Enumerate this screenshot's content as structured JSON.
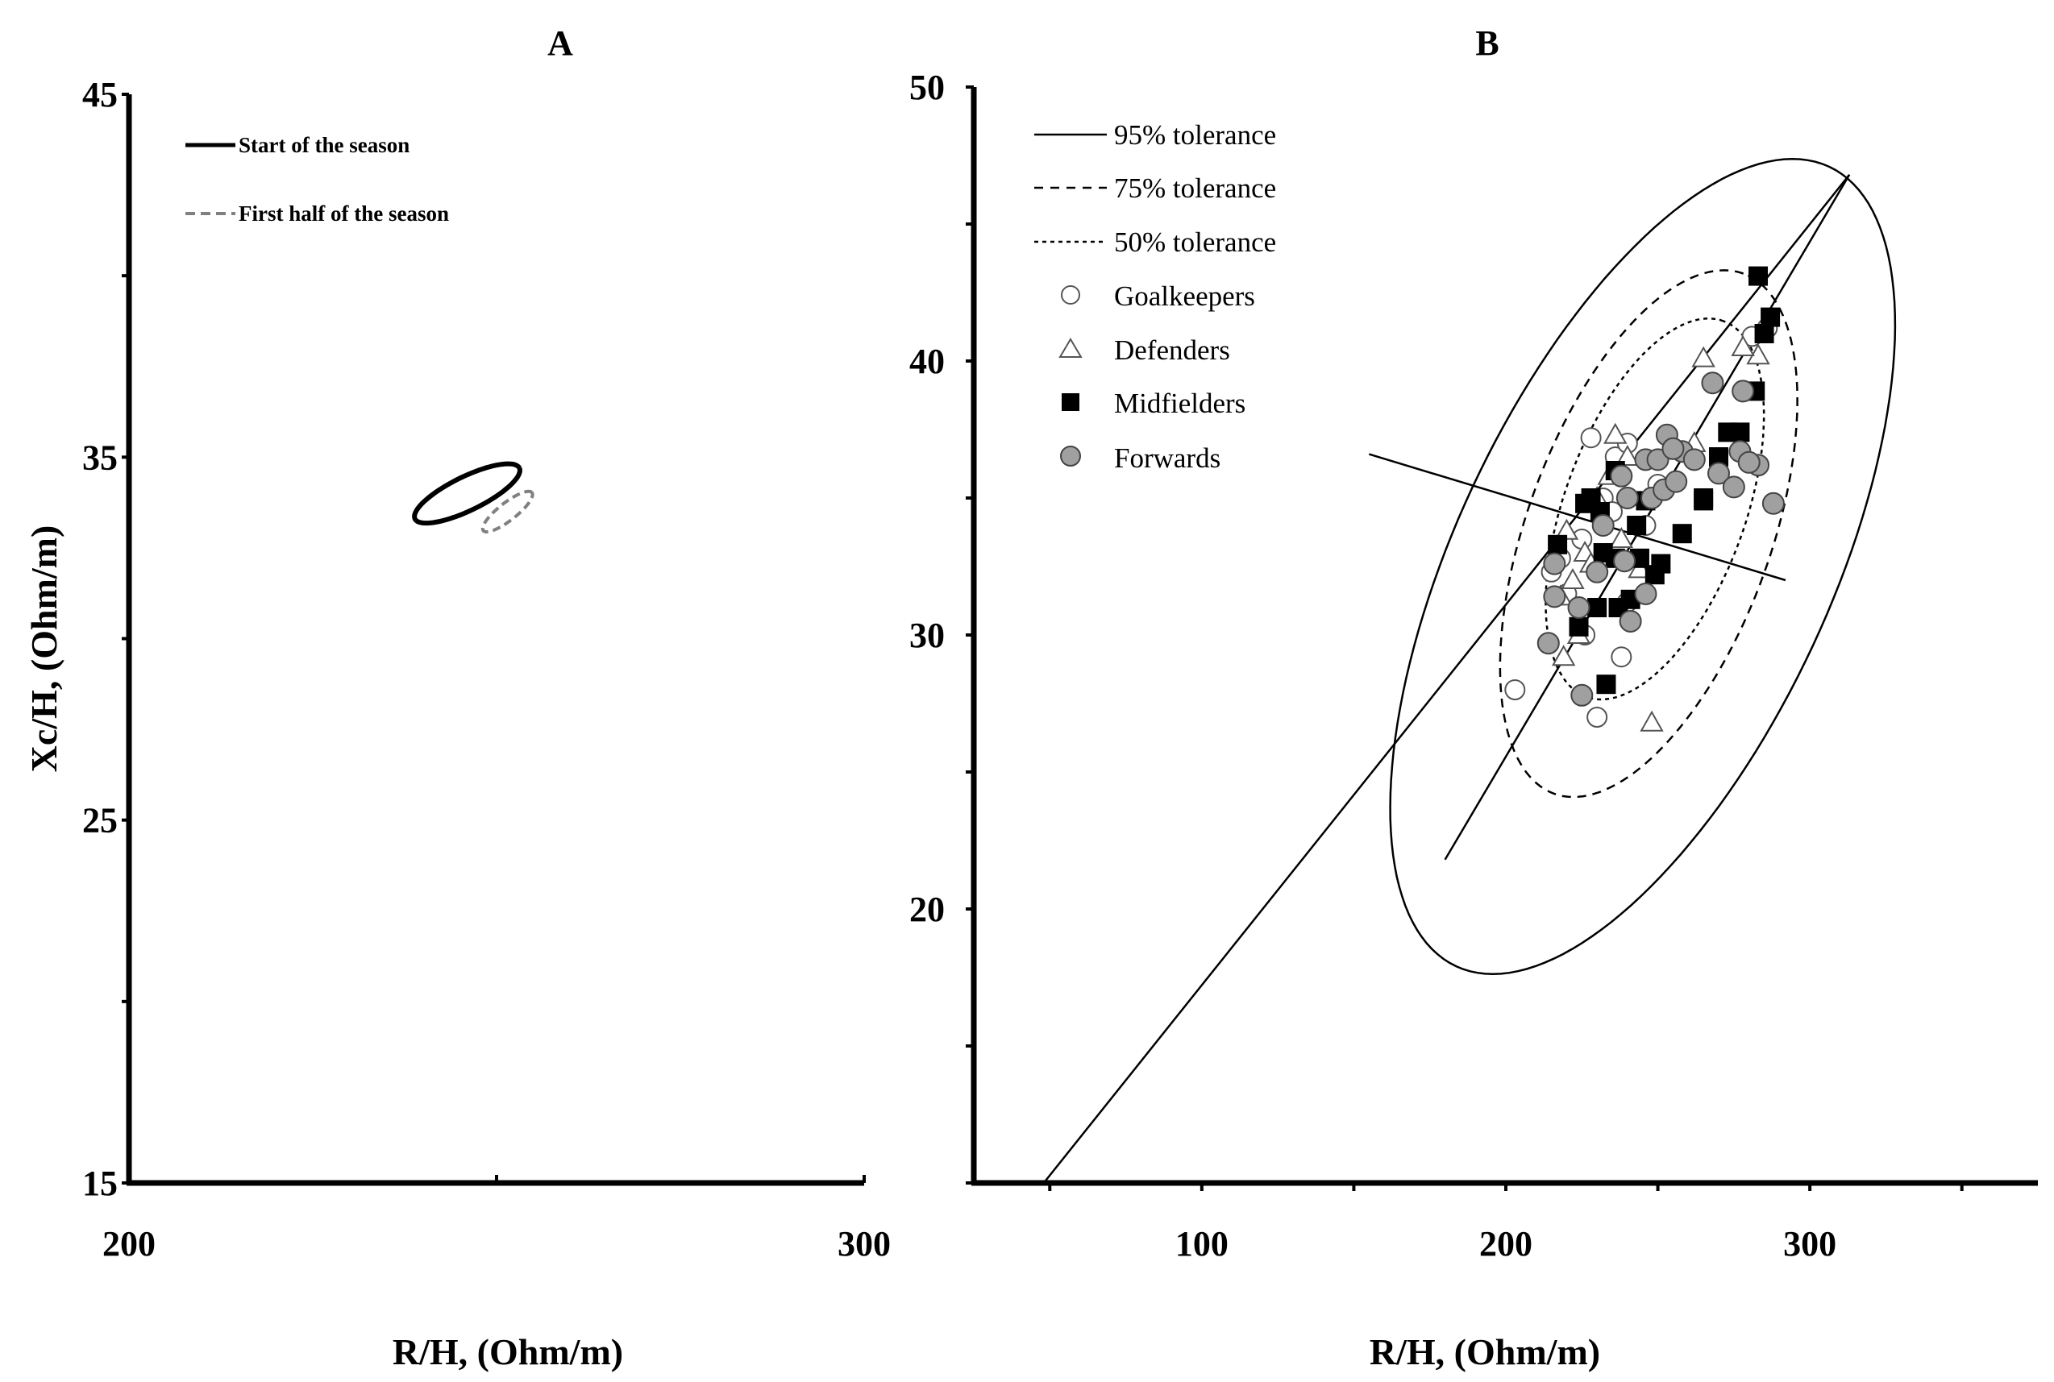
{
  "chart_data": [
    {
      "panel": "A",
      "type": "scatter",
      "title": "A",
      "xlabel": "R/H, (Ohm/m)",
      "ylabel": "Xc/H, (Ohm/m)",
      "xlim": [
        200,
        300
      ],
      "ylim": [
        15,
        45
      ],
      "xticks": [
        200,
        300
      ],
      "yticks": [
        15,
        25,
        35,
        45
      ],
      "legend_position": "top-left",
      "series": [
        {
          "name": "Start of the season",
          "style": "solid",
          "color": "#000000",
          "ellipse": {
            "center": [
              246,
              34
            ],
            "semi_major": 7.9,
            "semi_minor": 2.3,
            "angle_deg": 26
          }
        },
        {
          "name": "First half of the season",
          "style": "dashed",
          "color": "#808080",
          "ellipse": {
            "center": [
              251.5,
              33.5
            ],
            "semi_major": 4.2,
            "semi_minor": 1.2,
            "angle_deg": 38
          }
        }
      ]
    },
    {
      "panel": "B",
      "type": "scatter",
      "title": "B",
      "xlabel": "R/H, (Ohm/m)",
      "ylabel": "",
      "xlim": [
        25,
        375
      ],
      "ylim": [
        10,
        50
      ],
      "xticks": [
        100,
        200,
        300
      ],
      "yticks": [
        20,
        30,
        40,
        50
      ],
      "legend_position": "top-left",
      "tolerance_ellipses": [
        {
          "name": "95% tolerance",
          "style": "solid",
          "center": [
            245,
            32.5
          ],
          "semi_major": 16.1,
          "semi_minor": 6.85,
          "angle_deg": 65
        },
        {
          "name": "75% tolerance",
          "style": "dashed",
          "center": [
            247,
            33.7
          ],
          "semi_major": 10.1,
          "semi_minor": 4.45,
          "angle_deg": 70
        },
        {
          "name": "50% tolerance",
          "style": "dotted",
          "center": [
            249,
            34.6
          ],
          "semi_major": 7.3,
          "semi_minor": 3.3,
          "angle_deg": 70
        }
      ],
      "axes_lines": [
        {
          "name": "major-axis",
          "from": [
            48,
            10
          ],
          "to": [
            313,
            46.8
          ]
        },
        {
          "name": "major-axis-segment",
          "from": [
            180,
            21.8
          ],
          "to": [
            313,
            46.8
          ]
        },
        {
          "name": "minor-axis",
          "from": [
            155,
            36.6
          ],
          "to": [
            292,
            32
          ]
        }
      ],
      "series": [
        {
          "name": "Goalkeepers",
          "marker": "circle-open",
          "points": [
            [
              203,
              28
            ],
            [
              230,
              27
            ],
            [
              238,
              29.2
            ],
            [
              226,
              30
            ],
            [
              215,
              32.3
            ],
            [
              218,
              32.8
            ],
            [
              225,
              33.5
            ],
            [
              232,
              35
            ],
            [
              236,
              36.5
            ],
            [
              240,
              37
            ],
            [
              228,
              37.2
            ],
            [
              246,
              34
            ],
            [
              250,
              35.5
            ],
            [
              281,
              40.9
            ],
            [
              286,
              41.2
            ],
            [
              220,
              31.5
            ],
            [
              240,
              31.2
            ],
            [
              235,
              34.5
            ]
          ]
        },
        {
          "name": "Defenders",
          "marker": "triangle-open",
          "points": [
            [
              248,
              26.8
            ],
            [
              219,
              29.2
            ],
            [
              224,
              30
            ],
            [
              218,
              31.4
            ],
            [
              222,
              32
            ],
            [
              226,
              33
            ],
            [
              220,
              33.8
            ],
            [
              230,
              35
            ],
            [
              234,
              35.8
            ],
            [
              240,
              36.5
            ],
            [
              236,
              37.3
            ],
            [
              265,
              40.1
            ],
            [
              283,
              40.2
            ],
            [
              278,
              40.5
            ],
            [
              262,
              37
            ],
            [
              238,
              33.5
            ],
            [
              244,
              32.4
            ],
            [
              228,
              32.6
            ]
          ]
        },
        {
          "name": "Midfielders",
          "marker": "square-filled",
          "points": [
            [
              233,
              28.2
            ],
            [
              224,
              30.3
            ],
            [
              230,
              31
            ],
            [
              237,
              31
            ],
            [
              241,
              31.3
            ],
            [
              249,
              32.2
            ],
            [
              251,
              32.6
            ],
            [
              236,
              32.8
            ],
            [
              244,
              32.8
            ],
            [
              232,
              33
            ],
            [
              217,
              33.3
            ],
            [
              258,
              33.7
            ],
            [
              243,
              34
            ],
            [
              231,
              34.5
            ],
            [
              246,
              34.9
            ],
            [
              228,
              35
            ],
            [
              265,
              35
            ],
            [
              270,
              36.5
            ],
            [
              273,
              37.4
            ],
            [
              277,
              37.4
            ],
            [
              282,
              38.9
            ],
            [
              285,
              41
            ],
            [
              287,
              41.6
            ],
            [
              283,
              43.1
            ],
            [
              265,
              34.9
            ],
            [
              236,
              36
            ],
            [
              226,
              34.8
            ]
          ]
        },
        {
          "name": "Forwards",
          "marker": "circle-filled",
          "points": [
            [
              225,
              27.8
            ],
            [
              214,
              29.7
            ],
            [
              224,
              31
            ],
            [
              216,
              31.4
            ],
            [
              241,
              30.5
            ],
            [
              246,
              31.5
            ],
            [
              230,
              32.3
            ],
            [
              239,
              32.7
            ],
            [
              216,
              32.6
            ],
            [
              232,
              34
            ],
            [
              240,
              35
            ],
            [
              248,
              35
            ],
            [
              252,
              35.3
            ],
            [
              256,
              35.6
            ],
            [
              238,
              35.8
            ],
            [
              246,
              36.4
            ],
            [
              250,
              36.4
            ],
            [
              258,
              36.7
            ],
            [
              262,
              36.4
            ],
            [
              253,
              37.3
            ],
            [
              255,
              36.8
            ],
            [
              270,
              35.9
            ],
            [
              275,
              35.4
            ],
            [
              277,
              36.7
            ],
            [
              283,
              36.2
            ],
            [
              280,
              36.3
            ],
            [
              288,
              34.8
            ],
            [
              268,
              39.2
            ],
            [
              278,
              38.9
            ]
          ]
        }
      ]
    }
  ]
}
